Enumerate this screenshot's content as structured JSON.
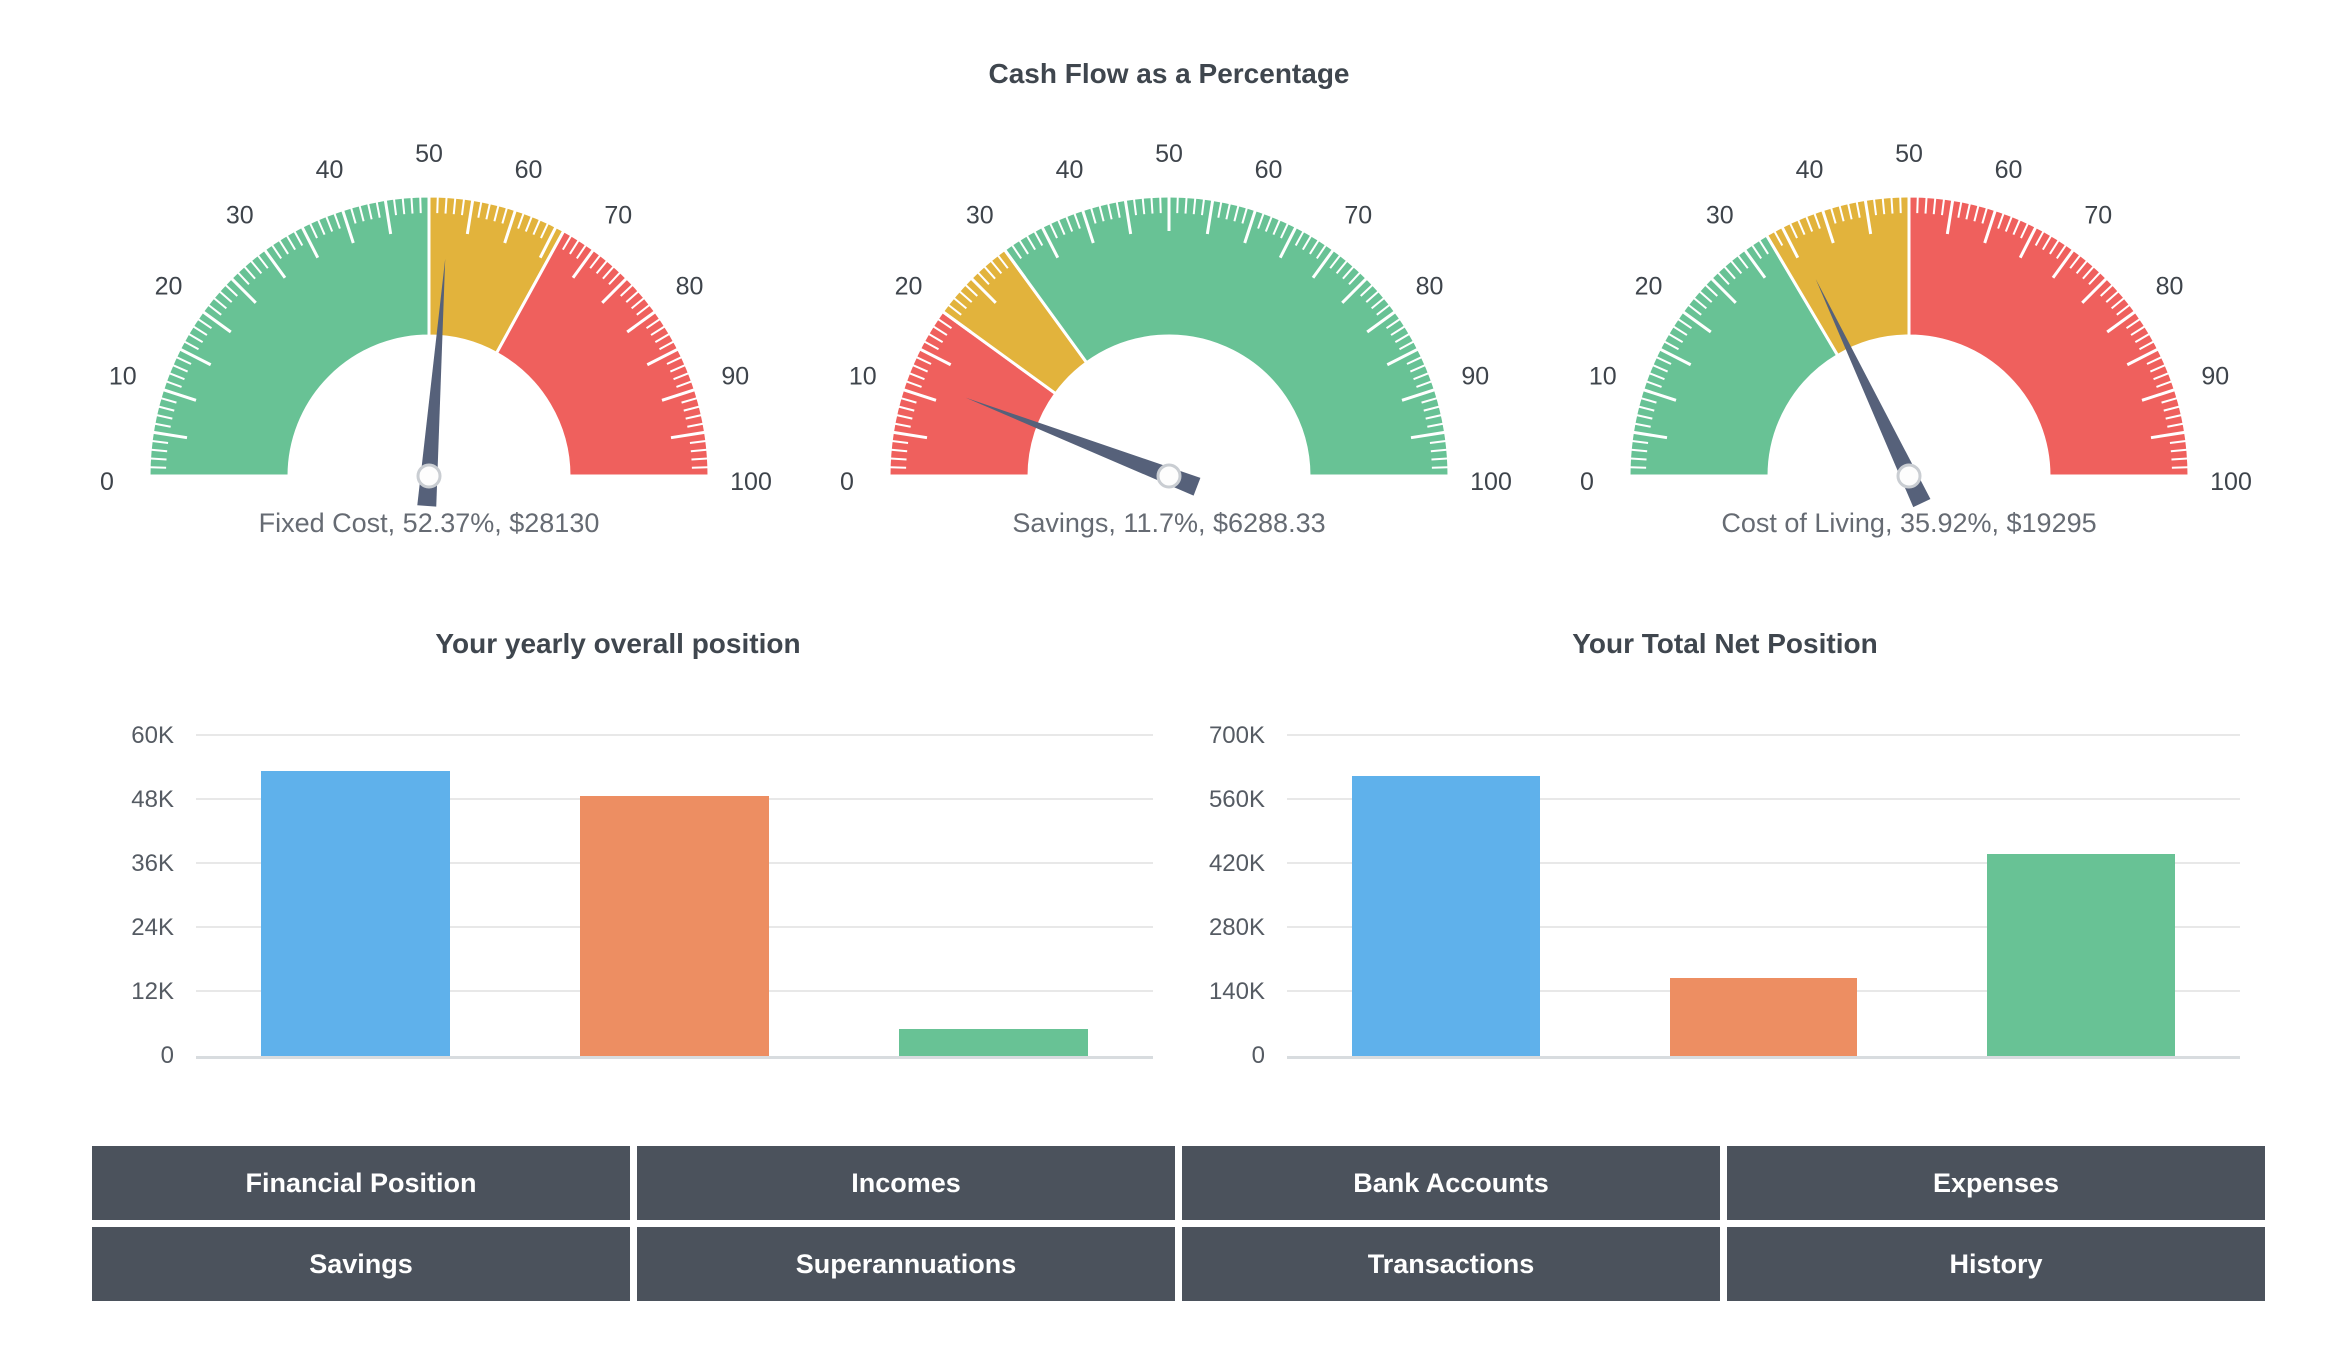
{
  "colors": {
    "green": "#68C295",
    "yellow": "#E2B33C",
    "red": "#EF605D",
    "blue": "#5FB1EB",
    "orange": "#ED8E62",
    "slate": "#4B525C",
    "needle": "#56617A",
    "grid": "#E8E8E8",
    "axis_line": "#D8DCDF",
    "title_text": "#3F464E",
    "caption_text": "#666B73",
    "tick_text": "#555B63",
    "scale_text": "#3E444B"
  },
  "chart_data": [
    {
      "type": "gauge-group",
      "title": "Cash Flow as a Percentage",
      "min": 0,
      "max": 100,
      "tick_labels": [
        "0",
        "10",
        "20",
        "30",
        "40",
        "50",
        "60",
        "70",
        "80",
        "90",
        "100"
      ],
      "minor_tick_step": 1,
      "major_tick_step": 5,
      "gauges": [
        {
          "name": "Fixed Cost",
          "percent": 52.37,
          "amount": "$28130",
          "label": "Fixed Cost, 52.37%, $28130",
          "bands": [
            {
              "from": 0,
              "to": 50,
              "color": "green"
            },
            {
              "from": 50,
              "to": 66,
              "color": "yellow"
            },
            {
              "from": 66,
              "to": 100,
              "color": "red"
            }
          ]
        },
        {
          "name": "Savings",
          "percent": 11.7,
          "amount": "$6288.33",
          "label": "Savings, 11.7%, $6288.33",
          "bands": [
            {
              "from": 0,
              "to": 20,
              "color": "red"
            },
            {
              "from": 20,
              "to": 30,
              "color": "yellow"
            },
            {
              "from": 30,
              "to": 100,
              "color": "green"
            }
          ]
        },
        {
          "name": "Cost of Living",
          "percent": 35.92,
          "amount": "$19295",
          "label": "Cost of Living, 35.92%, $19295",
          "bands": [
            {
              "from": 0,
              "to": 33,
              "color": "green"
            },
            {
              "from": 33,
              "to": 50,
              "color": "yellow"
            },
            {
              "from": 50,
              "to": 100,
              "color": "red"
            }
          ]
        }
      ]
    },
    {
      "type": "bar",
      "title": "Your yearly overall position",
      "ylim": [
        0,
        60000
      ],
      "ytick_labels": [
        "0",
        "12K",
        "24K",
        "36K",
        "48K",
        "60K"
      ],
      "values": [
        53500,
        48700,
        5000
      ],
      "bar_colors": [
        "blue",
        "orange",
        "green"
      ],
      "grid": true,
      "legend": false
    },
    {
      "type": "bar",
      "title": "Your Total Net Position",
      "ylim": [
        0,
        700000
      ],
      "ytick_labels": [
        "0",
        "140K",
        "280K",
        "420K",
        "560K",
        "700K"
      ],
      "values": [
        613000,
        170000,
        443000
      ],
      "bar_colors": [
        "blue",
        "orange",
        "green"
      ],
      "grid": true,
      "legend": false
    }
  ],
  "nav": {
    "buttons": [
      "Financial Position",
      "Incomes",
      "Bank Accounts",
      "Expenses",
      "Savings",
      "Superannuations",
      "Transactions",
      "History"
    ]
  }
}
